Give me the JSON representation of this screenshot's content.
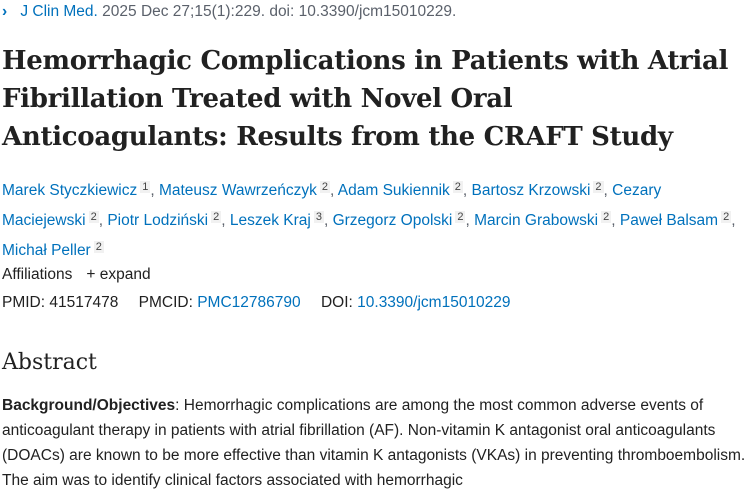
{
  "citation": {
    "journal": "J Clin Med.",
    "details": " 2025 Dec 27;15(1):229. doi: 10.3390/jcm15010229."
  },
  "title": "Hemorrhagic Complications in Patients with Atrial Fibrillation Treated with Novel Oral Anticoagulants: Results from the CRAFT Study",
  "authors": [
    {
      "name": "Marek Styczkiewicz",
      "aff": "1"
    },
    {
      "name": "Mateusz Wawrzeńczyk",
      "aff": "2"
    },
    {
      "name": "Adam Sukiennik",
      "aff": "2"
    },
    {
      "name": "Bartosz Krzowski",
      "aff": "2"
    },
    {
      "name": "Cezary Maciejewski",
      "aff": "2"
    },
    {
      "name": "Piotr Lodziński",
      "aff": "2"
    },
    {
      "name": "Leszek Kraj",
      "aff": "3"
    },
    {
      "name": "Grzegorz Opolski",
      "aff": "2"
    },
    {
      "name": "Marcin Grabowski",
      "aff": "2"
    },
    {
      "name": "Paweł Balsam",
      "aff": "2"
    },
    {
      "name": "Michał Peller",
      "aff": "2"
    }
  ],
  "affiliations": {
    "label": "Affiliations",
    "expand": "+ expand"
  },
  "ids": {
    "pmid_label": "PMID:",
    "pmid": "41517478",
    "pmcid_label": "PMCID:",
    "pmcid": "PMC12786790",
    "doi_label": "DOI:",
    "doi": "10.3390/jcm15010229"
  },
  "abstract": {
    "heading": "Abstract",
    "section_label": "Background/Objectives",
    "text": ": Hemorrhagic complications are among the most common adverse events of anticoagulant therapy in patients with atrial fibrillation (AF). Non-vitamin K antagonist oral anticoagulants (DOACs) are known to be more effective than vitamin K antagonists (VKAs) in preventing thromboembolism. The aim was to identify clinical factors associated with hemorrhagic"
  }
}
